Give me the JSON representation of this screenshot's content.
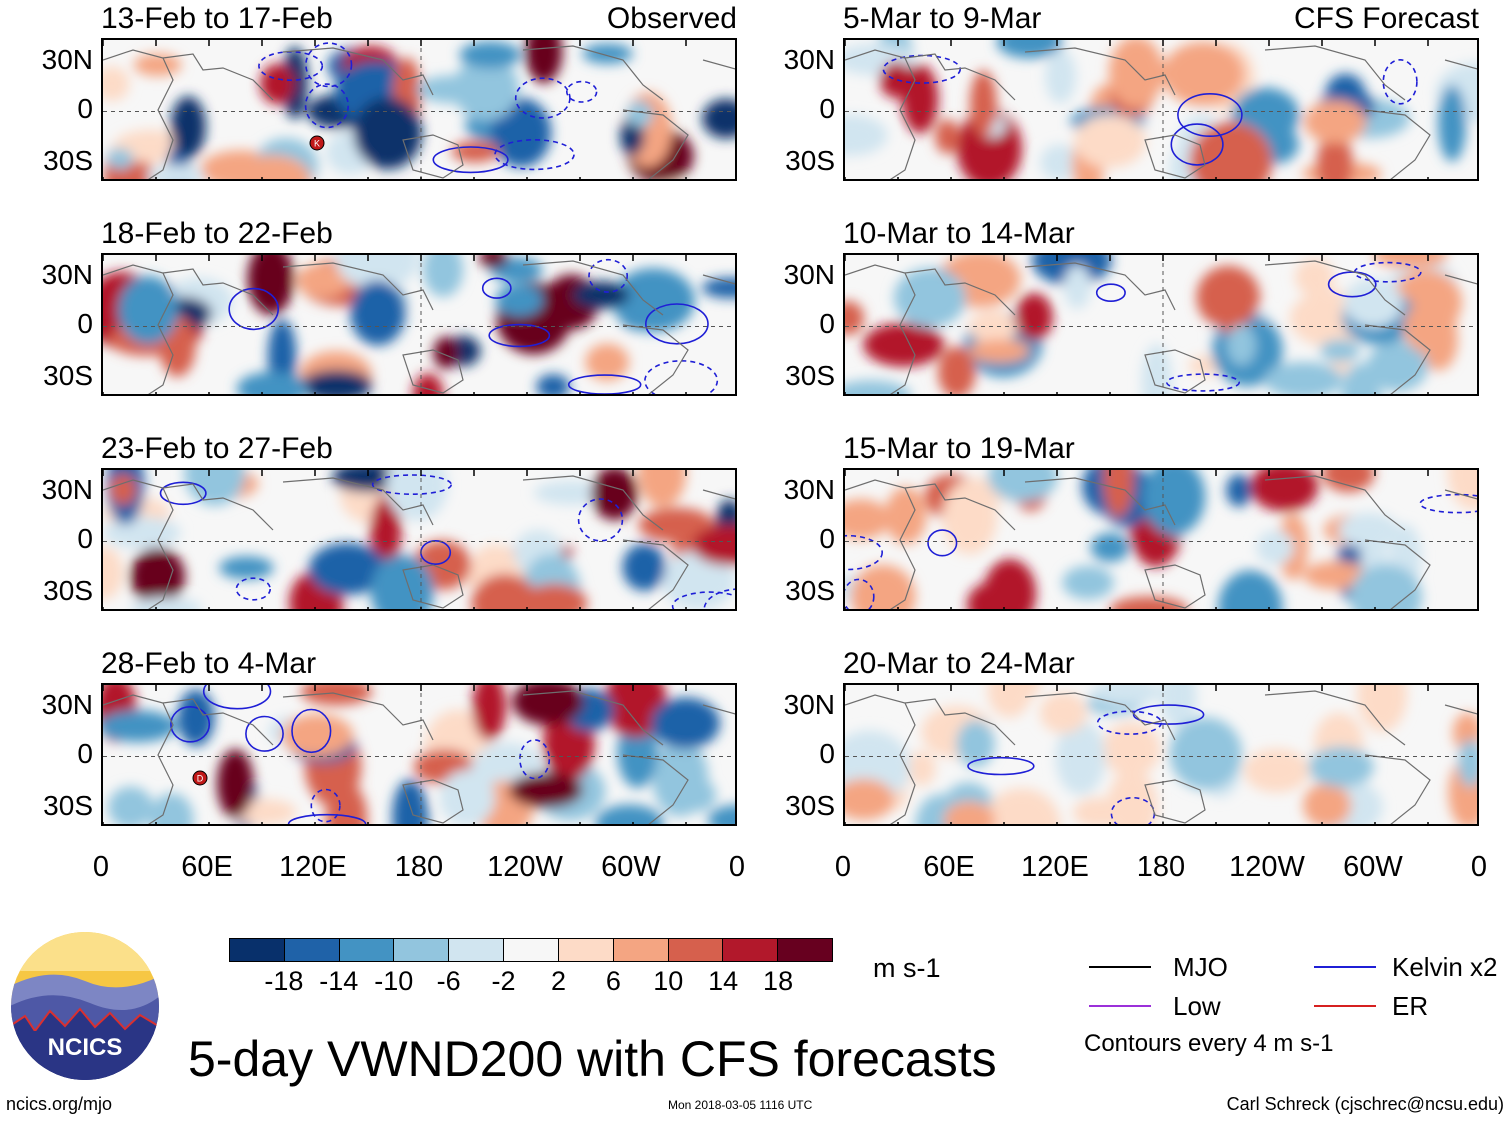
{
  "chart_data": {
    "type": "heatmap",
    "title": "5-day VWND200 with CFS forecasts",
    "units": "m s-1",
    "colorbar": {
      "ticks": [
        "-18",
        "-14",
        "-10",
        "-6",
        "-2",
        "2",
        "6",
        "10",
        "14",
        "18"
      ],
      "colors": [
        "#08306b",
        "#1f62a8",
        "#4393c3",
        "#92c5de",
        "#d1e5f0",
        "#f7f7f7",
        "#fddbc7",
        "#f4a582",
        "#d6604d",
        "#b2182b",
        "#67001f"
      ]
    },
    "y_ticks": [
      "30N",
      "0",
      "30S"
    ],
    "x_ticks": [
      "0",
      "60E",
      "120E",
      "180",
      "120W",
      "60W",
      "0"
    ],
    "legend": [
      {
        "label": "MJO",
        "color": "#000000"
      },
      {
        "label": "Kelvin x2",
        "color": "#1f1fd6"
      },
      {
        "label": "Low",
        "color": "#9b30d9"
      },
      {
        "label": "ER",
        "color": "#d62020"
      }
    ],
    "contour_note": "Contours every 4 m s-1",
    "panels": [
      {
        "title": "13-Feb to 17-Feb",
        "tag": "Observed",
        "col": 0,
        "row": 0,
        "storm": "K"
      },
      {
        "title": "18-Feb to 22-Feb",
        "tag": "",
        "col": 0,
        "row": 1
      },
      {
        "title": "23-Feb to 27-Feb",
        "tag": "",
        "col": 0,
        "row": 2
      },
      {
        "title": "28-Feb to 4-Mar",
        "tag": "",
        "col": 0,
        "row": 3,
        "storm": "D"
      },
      {
        "title": "5-Mar to 9-Mar",
        "tag": "CFS Forecast",
        "col": 1,
        "row": 0
      },
      {
        "title": "10-Mar to 14-Mar",
        "tag": "",
        "col": 1,
        "row": 1
      },
      {
        "title": "15-Mar to 19-Mar",
        "tag": "",
        "col": 1,
        "row": 2
      },
      {
        "title": "20-Mar to 24-Mar",
        "tag": "",
        "col": 1,
        "row": 3
      }
    ]
  },
  "logo": {
    "text": "NCICS"
  },
  "footer": {
    "site": "ncics.org/mjo",
    "stamp": "Mon 2018-03-05 1116 UTC",
    "author": "Carl Schreck (cjschrec@ncsu.edu)"
  }
}
